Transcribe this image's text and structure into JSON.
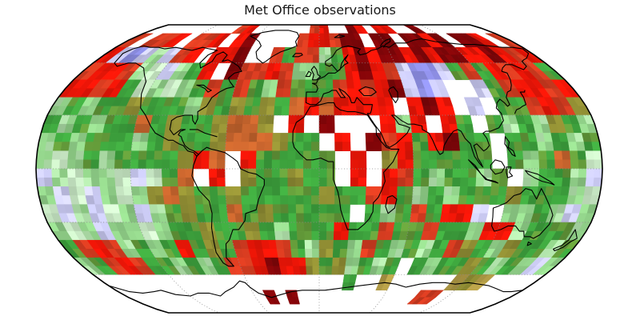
{
  "title": "Met Office observations",
  "chart_data": {
    "type": "heatmap",
    "projection": "Robinson",
    "title": "Met Office observations",
    "coarse_cell_deg": 10,
    "fine_cell_deg": 5,
    "no_data_code": "W",
    "palette": {
      "R": "#e81507",
      "r": "#d23b20",
      "D": "#7d0508",
      "O": "#c2622c",
      "o": "#8f8c33",
      "k": "#b09a45",
      "G": "#3da23d",
      "g": "#8fce87",
      "p": "#c8e8c4",
      "L": "#c9c9f1",
      "B": "#8c8de2",
      "W": "#ffffff"
    },
    "rows": [
      "WWWWWWWWWrRWWWWWWrRWWDRWRRWWDWWWWWWW",
      "rWrrRWrrRWRDWWWWrRRrDDWDDWDDRDWDDRWr",
      "RLBLgLrRWRRDWWrGrrgGRDRDDRDRDDRRDRrR",
      "rRRrgpLgGRWDrrRrggGGRDRrLBBLGrGRrRrG",
      "RRrRGpgpgGrGrGgrGGGrRrRDLBLWWLGrRRrR",
      "gGgGGoGGGgoGoGoGORORRRRWRDRWLWGGrRro",
      "GgGgGGOGoGGoOOoWRWDWWWRgRWRGWGgGgoGg",
      "gGgGGGgGoGGoOOOoGGWRWDrRGRDGGWGGgGgG",
      "gpgGgGGGGoROWRGGGGGWRWoRGGGGGWGgGOGp",
      "LgpggpLpGOWRWoGGoGGWRWRrGgGGgGWgGGgL",
      "gLpLgpgoOoGGoGGGGGoGGrRGgGgGGGoGGGgp",
      "pLgLpgLgGoGGOGoGGGGGWGgGrGRRLWggGgLg",
      "gpgLggpgGGoGGoGgGGGRGGrGGrGGgRRgGGGg",
      "GrRrgGgGRGoGrRRrGgoGgrGgGgGroGgoGGgG",
      "gGrRrGGgGgGrrRDRRoGogGgGWGgGGoGgGgLg",
      "WWWWWWWWWWWWWWWWWWWWGWWkWWWWWkokWWWW",
      "WWWWWWWWWWWWWDWDWWWWWWWWWWWrrWWWWWWW",
      "WWWWWWWWWWWWWWWWWWWWWWWWWWWWWWWWWWWW"
    ],
    "graticule": {
      "parallels_deg": [
        -60,
        -30,
        0,
        30,
        60
      ],
      "meridians_deg": [
        -120,
        -60,
        0,
        60,
        120
      ],
      "style": "dotted"
    }
  },
  "colors": {
    "background": "#ffffff",
    "title_color": "#181818",
    "coastline": "#000000",
    "boundary": "#000000",
    "graticule": "#8a8a8a"
  }
}
